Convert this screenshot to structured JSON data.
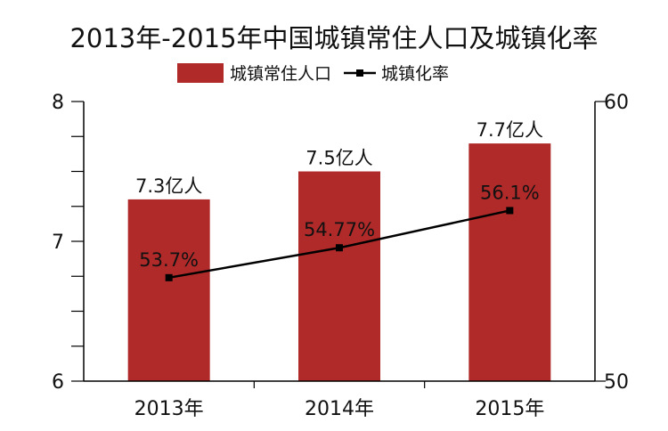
{
  "chart_data": {
    "type": "bar",
    "title": "2013年-2015年中国城镇常住人口及城镇化率",
    "categories": [
      "2013年",
      "2014年",
      "2015年"
    ],
    "series": [
      {
        "name": "城镇常住人口",
        "kind": "bar",
        "axis": "left",
        "values": [
          7.3,
          7.5,
          7.7
        ],
        "labels": [
          "7.3亿人",
          "7.5亿人",
          "7.7亿人"
        ],
        "color": "#b02a2a"
      },
      {
        "name": "城镇化率",
        "kind": "line",
        "axis": "right",
        "values": [
          53.7,
          54.77,
          56.1
        ],
        "labels": [
          "53.7%",
          "54.77%",
          "56.1%"
        ],
        "color": "#000000"
      }
    ],
    "y_left": {
      "min": 6,
      "max": 8,
      "tick_labels": [
        "6",
        "7",
        "8"
      ],
      "tick_values": [
        6,
        7,
        8
      ],
      "minor_step": 0.25
    },
    "y_right": {
      "min": 50,
      "max": 60,
      "tick_labels": [
        "50",
        "60"
      ],
      "tick_values": [
        50,
        60
      ]
    },
    "legend_position": "top-center",
    "grid": false
  }
}
